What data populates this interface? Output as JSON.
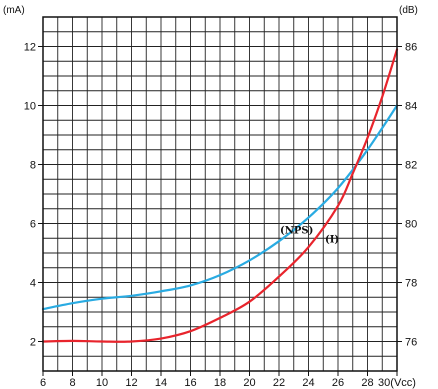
{
  "chart_data": {
    "type": "line",
    "x_unit": "(Vcc)",
    "x_ticks": [
      6,
      8,
      10,
      12,
      14,
      16,
      18,
      20,
      22,
      24,
      26,
      28,
      30
    ],
    "xlim": [
      6,
      30
    ],
    "left_axis": {
      "unit": "(mA)",
      "ticks": [
        2,
        4,
        6,
        8,
        10,
        12
      ],
      "lim": [
        1,
        13
      ]
    },
    "right_axis": {
      "unit": "(dB)",
      "ticks": [
        76,
        78,
        80,
        82,
        84,
        86
      ],
      "lim": [
        75,
        87
      ]
    },
    "grid": true,
    "series": [
      {
        "name": "(NPS)",
        "axis": "right",
        "color": "#29abe2",
        "x": [
          6,
          8,
          10,
          12,
          14,
          16,
          18,
          20,
          22,
          24,
          26,
          28,
          30
        ],
        "y": [
          77.1,
          77.3,
          77.45,
          77.55,
          77.7,
          77.9,
          78.25,
          78.75,
          79.4,
          80.2,
          81.2,
          82.5,
          84.0
        ]
      },
      {
        "name": "(I)",
        "axis": "left",
        "color": "#e8242c",
        "x": [
          6,
          8,
          10,
          12,
          14,
          16,
          18,
          20,
          22,
          24,
          26,
          27,
          28,
          29,
          30
        ],
        "y": [
          2.0,
          2.02,
          2.0,
          2.0,
          2.1,
          2.35,
          2.8,
          3.35,
          4.2,
          5.2,
          6.6,
          7.7,
          8.9,
          10.3,
          11.9
        ]
      }
    ],
    "annotations": [
      {
        "text": "(NPS)",
        "x": 23.2,
        "y_left": 5.8
      },
      {
        "text": "(I)",
        "x": 25.6,
        "y_left": 5.5
      }
    ]
  }
}
